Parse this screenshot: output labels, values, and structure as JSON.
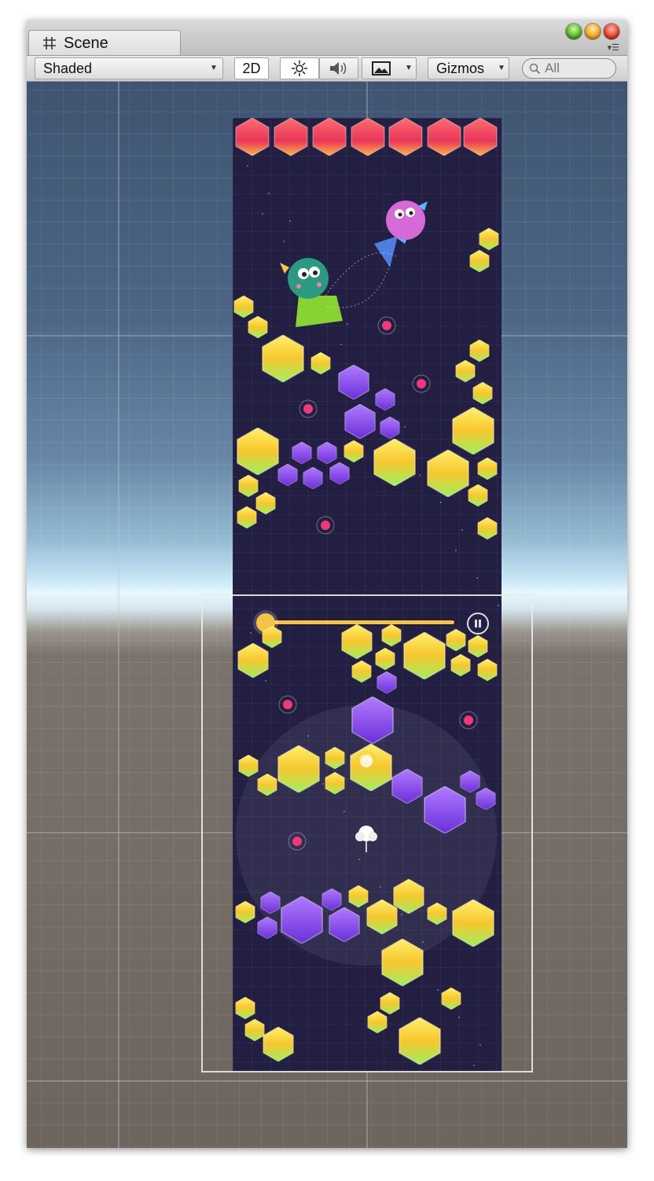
{
  "window": {
    "tab_title": "Scene",
    "tab_icon": "grid-hash-icon",
    "title_buttons": [
      "zoom-green-icon",
      "minimize-yellow-icon",
      "close-red-icon"
    ],
    "menu_icon": "panel-menu-icon"
  },
  "toolbar": {
    "shading_mode": "Shaded",
    "mode_2d_label": "2D",
    "lighting_icon": "sun-icon",
    "audio_icon": "speaker-icon",
    "effects_icon": "image-icon",
    "gizmos_label": "Gizmos",
    "search_placeholder": "All"
  },
  "scene": {
    "game_hud": {
      "progress": 0.0,
      "pause_icon": "pause-icon"
    },
    "colors": {
      "sky_top": "#3e5471",
      "horizon": "#e6f8ff",
      "ground": "#6c655e",
      "level_bg": "#221f43",
      "gem_red": "#ea3d5c",
      "gem_yellow": "#f5d43a",
      "gem_purple": "#8a46e6",
      "mine_pink": "#ee3a78"
    }
  }
}
